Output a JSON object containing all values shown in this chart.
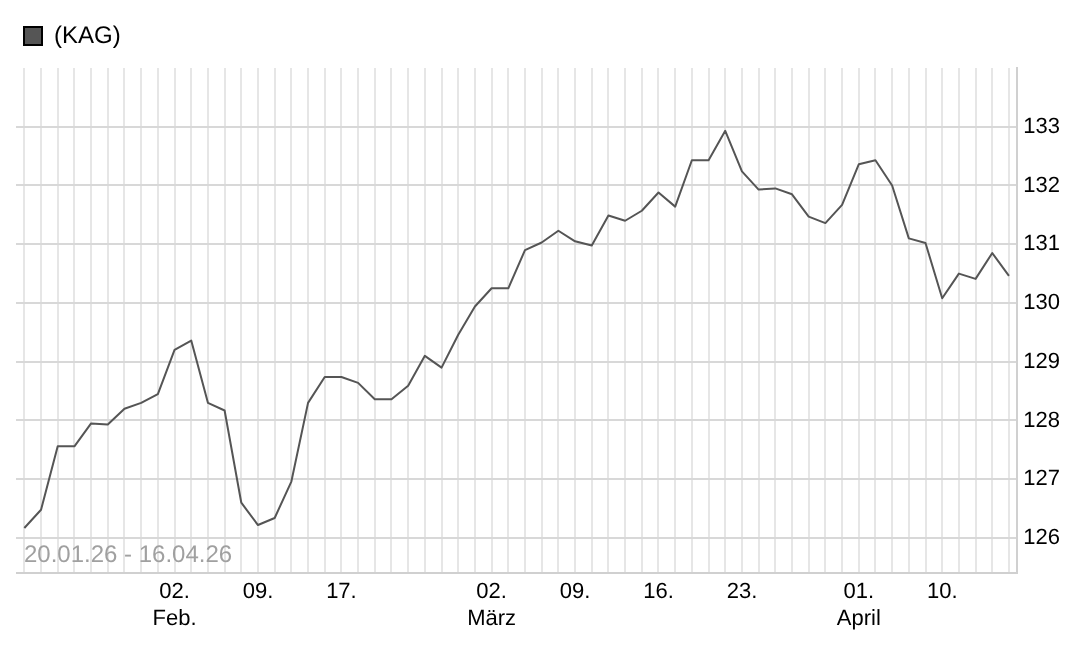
{
  "chart_data": {
    "type": "line",
    "categories": [
      null,
      null,
      null,
      null,
      null,
      null,
      null,
      null,
      null,
      "02.\nFeb.",
      null,
      null,
      null,
      null,
      "09.",
      null,
      null,
      null,
      null,
      "17.",
      null,
      null,
      null,
      null,
      null,
      null,
      null,
      null,
      "02.\nMärz",
      null,
      null,
      null,
      null,
      "09.",
      null,
      null,
      null,
      null,
      "16.",
      null,
      null,
      null,
      null,
      "23.",
      null,
      null,
      null,
      null,
      null,
      null,
      "01.\nApril",
      null,
      null,
      null,
      null,
      "10.",
      null,
      null,
      null,
      null
    ],
    "series": [
      {
        "name": "(KAG)",
        "color": "#555555",
        "values": [
          126.17,
          126.48,
          127.56,
          127.56,
          127.95,
          127.93,
          128.2,
          128.3,
          128.45,
          129.2,
          129.36,
          128.3,
          128.17,
          126.6,
          126.22,
          126.34,
          126.96,
          128.3,
          128.74,
          128.74,
          128.64,
          128.36,
          128.36,
          128.59,
          129.1,
          128.9,
          129.46,
          129.94,
          130.25,
          130.25,
          130.9,
          131.03,
          131.23,
          131.05,
          130.98,
          131.49,
          131.4,
          131.57,
          131.88,
          131.64,
          132.43,
          132.43,
          132.93,
          132.24,
          131.93,
          131.95,
          131.85,
          131.47,
          131.36,
          131.67,
          132.36,
          132.43,
          132.0,
          131.1,
          131.02,
          130.08,
          130.5,
          130.41,
          130.85,
          130.46
        ]
      }
    ],
    "ylim": [
      125.4,
      134
    ],
    "yticks": [
      126,
      127,
      128,
      129,
      130,
      131,
      132,
      133
    ],
    "grid": true,
    "legend": "top left",
    "marker": "none",
    "line_style": "solid",
    "annotations": [
      "20.01.26 - 16.04.26"
    ]
  }
}
